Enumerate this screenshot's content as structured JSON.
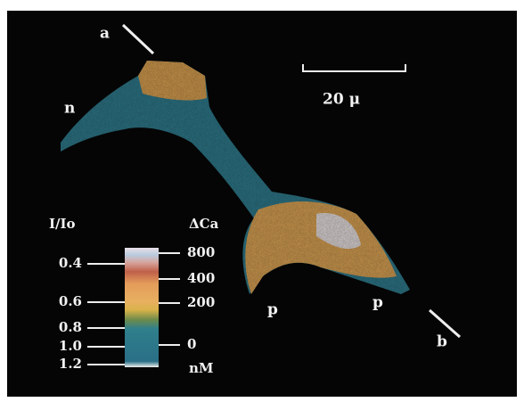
{
  "image": {
    "line_labels": [
      "a",
      "b"
    ],
    "region_labels": [
      "n",
      "p",
      "p"
    ],
    "scale_bar": "20 μ",
    "colorbar": {
      "left_title": "I/Io",
      "right_title": "ΔCa",
      "left_ticks": [
        "0.4",
        "0.6",
        "0.8",
        "1.0",
        "1.2"
      ],
      "right_ticks": [
        "800",
        "400",
        "200",
        "0"
      ],
      "right_unit": "nM"
    }
  }
}
